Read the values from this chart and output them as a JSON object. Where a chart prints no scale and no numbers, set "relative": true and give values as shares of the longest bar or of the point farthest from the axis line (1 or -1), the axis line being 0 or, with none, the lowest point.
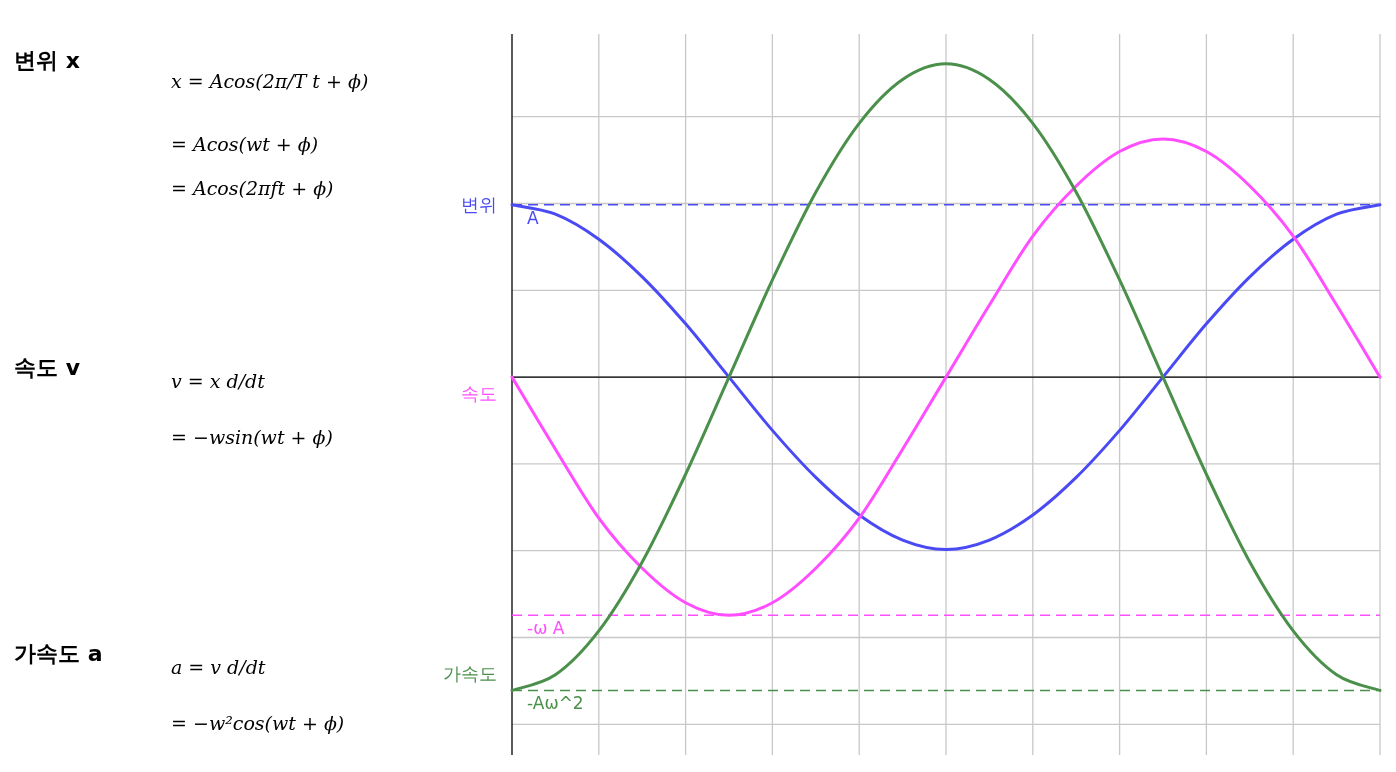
{
  "chart_data": {
    "type": "line",
    "relative": true,
    "grid": true,
    "legend": false,
    "marker": "none",
    "line_style": "solid",
    "categories": [
      null,
      null,
      null,
      null,
      null,
      null,
      null,
      null,
      null,
      null,
      null,
      null,
      null,
      null,
      null,
      null,
      null,
      null,
      null,
      null,
      null
    ],
    "series": [
      {
        "name": "변위",
        "color": "#4a4af5",
        "values": [
          0.55,
          0.52,
          0.44,
          0.32,
          0.17,
          0,
          -0.17,
          -0.32,
          -0.44,
          -0.52,
          -0.55,
          -0.52,
          -0.44,
          -0.32,
          -0.17,
          0,
          0.17,
          0.32,
          0.44,
          0.52,
          0.55
        ]
      },
      {
        "name": "속도",
        "color": "#ff4dff",
        "values": [
          0,
          -0.23,
          -0.45,
          -0.61,
          -0.72,
          -0.76,
          -0.72,
          -0.61,
          -0.45,
          -0.23,
          0,
          0.23,
          0.45,
          0.61,
          0.72,
          0.76,
          0.72,
          0.61,
          0.45,
          0.23,
          0
        ]
      },
      {
        "name": "가속도",
        "color": "#4a8f4a",
        "values": [
          -1,
          -0.95,
          -0.81,
          -0.59,
          -0.31,
          0,
          0.31,
          0.59,
          0.81,
          0.95,
          1,
          0.95,
          0.81,
          0.59,
          0.31,
          0,
          -0.31,
          -0.59,
          -0.81,
          -0.95,
          -1
        ]
      }
    ],
    "ref_lines": [
      {
        "axis": "y",
        "value": 0.55,
        "label": "A",
        "color": "#4a4af5",
        "line_style": "dashed"
      },
      {
        "axis": "y",
        "value": -0.76,
        "label": "-ω A",
        "color": "#ff4dff",
        "line_style": "dashed"
      },
      {
        "axis": "y",
        "value": -1,
        "label": "-Aω^2",
        "color": "#4a8f4a",
        "line_style": "dashed"
      }
    ],
    "annotations": [
      "변위 x",
      "x = Acos(2π/T t + ϕ)",
      "= Acos(wt + ϕ)",
      "= Acos(2πft + ϕ)",
      "속도 v",
      "v = x d/dt",
      "= −wsin(wt + ϕ)",
      "가속도 a",
      "a = v d/dt",
      "= −w²cos(wt + ϕ)"
    ]
  }
}
